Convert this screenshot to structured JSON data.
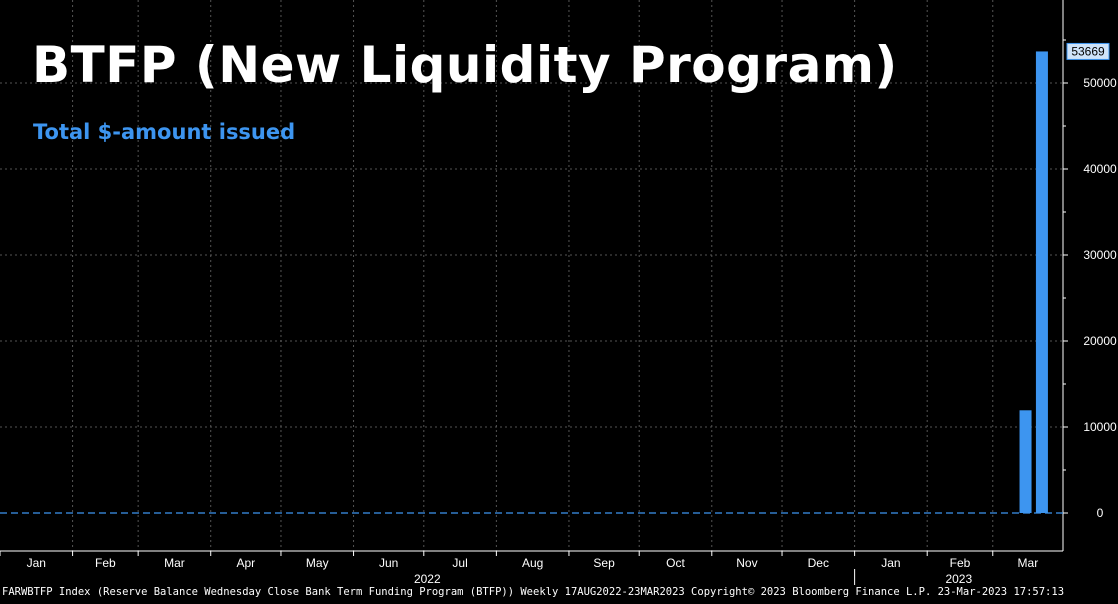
{
  "title": "BTFP (New Liquidity Program)",
  "subtitle": "Total $-amount issued",
  "footer": "FARWBTFP Index (Reserve Balance Wednesday Close Bank Term Funding Program (BTFP))  Weekly 17AUG2022-23MAR2023 Copyright© 2023 Bloomberg Finance L.P. 23-Mar-2023 17:57:13",
  "colors": {
    "background": "#000000",
    "bar": "#3d95f0",
    "grid": "#555555",
    "text": "#ffffff",
    "zero_line": "#3d95f0"
  },
  "chart_data": {
    "type": "bar",
    "title": "BTFP (New Liquidity Program)",
    "subtitle": "Total $-amount issued",
    "x_tick_labels": [
      "Jan",
      "Feb",
      "Mar",
      "Apr",
      "May",
      "Jun",
      "Jul",
      "Aug",
      "Sep",
      "Oct",
      "Nov",
      "Dec",
      "Jan",
      "Feb",
      "Mar"
    ],
    "year_labels": [
      "2022",
      "2023"
    ],
    "y_tick_labels": [
      "0",
      "10000",
      "20000",
      "30000",
      "40000",
      "50000"
    ],
    "ylim": [
      -2000,
      60000
    ],
    "grid": true,
    "y_axis_side": "right",
    "last_value_label": "53669",
    "series": [
      {
        "x": [
          "2023-03-15",
          "2023-03-22"
        ],
        "values": [
          11943,
          53669
        ]
      }
    ]
  }
}
